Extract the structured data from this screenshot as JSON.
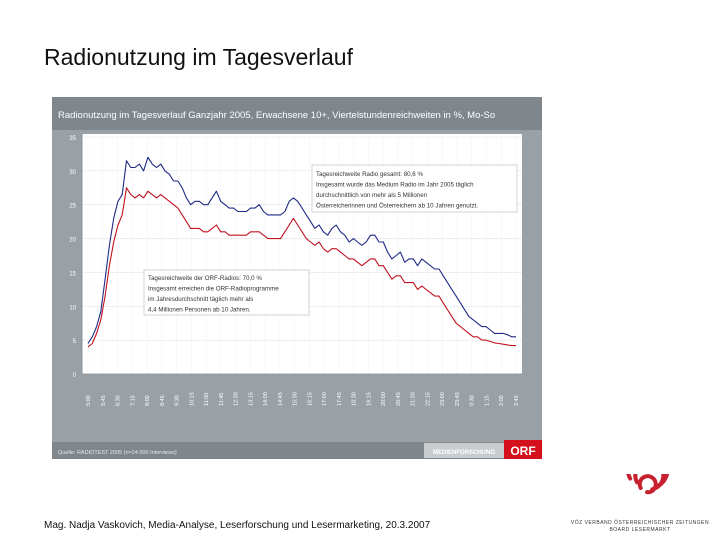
{
  "slide_title": "Radionutzung im Tagesverlauf",
  "footer": "Mag. Nadja Vaskovich, Media-Analyse, Leserforschung und Lesermarketing, 20.3.2007",
  "logo": {
    "line1": "VÖZ VERBAND ÖSTERREICHISCHER ZEITUNGEN",
    "line2": "BOARD LESERMARKT",
    "color": "#c8202f"
  },
  "chart_data": {
    "type": "line",
    "title": "Radionutzung im Tagesverlauf Ganzjahr 2005, Erwachsene 10+, Viertelstundenreichweiten in %, Mo-So",
    "source": "Quelle: RADIOTEST 2005 (n=24.000 Interviews)",
    "brand_label": "MEDIENFORSCHUNG",
    "brand_logo": "ORF",
    "ylim": [
      0,
      35
    ],
    "yticks": [
      "0",
      "5",
      "10",
      "15",
      "20",
      "25",
      "30",
      "35"
    ],
    "xticks": [
      "5:00",
      "5:45",
      "6:30",
      "7:15",
      "8:00",
      "8:45",
      "9:30",
      "10:15",
      "11:00",
      "11:45",
      "12:30",
      "13:15",
      "14:00",
      "14:45",
      "15:30",
      "16:15",
      "17:00",
      "17:45",
      "18:30",
      "19:15",
      "20:00",
      "20:45",
      "21:30",
      "22:15",
      "23:00",
      "23:45",
      "0:30",
      "1:15",
      "2:00",
      "2:45"
    ],
    "series": [
      {
        "name": "Radio gesamt",
        "color": "#1f2a86",
        "values": [
          4.5,
          5.5,
          7,
          9.2,
          14,
          19,
          23,
          25.5,
          26.5,
          31.5,
          30.5,
          30.5,
          31,
          30,
          32,
          31,
          30.5,
          31,
          30,
          29.5,
          28.5,
          28.5,
          27.5,
          26,
          25,
          25.5,
          25.5,
          25,
          25,
          26,
          27,
          25.5,
          25,
          24.5,
          24.5,
          24,
          24,
          24,
          24.5,
          24.5,
          25,
          24,
          23.5,
          23.5,
          23.5,
          23.5,
          24,
          25.5,
          26,
          25.5,
          24.5,
          23.5,
          22.5,
          21.5,
          22,
          21,
          20.5,
          21.5,
          22,
          21,
          20.5,
          19.5,
          20,
          19.5,
          19,
          19.5,
          20.5,
          20.5,
          19.5,
          19.5,
          18,
          17,
          17.5,
          18,
          16.5,
          17,
          17,
          16,
          17,
          16.5,
          16,
          15.5,
          15.5,
          14.5,
          13.5,
          12.5,
          11.5,
          10.5,
          9.5,
          8.5,
          8,
          7.5,
          7,
          7,
          6.5,
          6,
          6,
          6,
          5.8,
          5.5,
          5.5
        ]
      },
      {
        "name": "ORF-Radios",
        "color": "#c1121f",
        "values": [
          4,
          4.5,
          6,
          8,
          11.5,
          16,
          19.5,
          22,
          23.5,
          27.5,
          26.5,
          26,
          26.5,
          26,
          27,
          26.5,
          26,
          26.5,
          26,
          25.5,
          25,
          24.5,
          23.5,
          22.5,
          21.5,
          21.5,
          21.5,
          21,
          21,
          21.5,
          22,
          21,
          21,
          20.5,
          20.5,
          20.5,
          20.5,
          20.5,
          21,
          21,
          21,
          20.5,
          20,
          20,
          20,
          20,
          21,
          22,
          23,
          22,
          21,
          20,
          19.5,
          19,
          19.5,
          18.5,
          18,
          18.5,
          18.5,
          18,
          17.5,
          17,
          17,
          16.5,
          16,
          16.5,
          17,
          17,
          16,
          16,
          15,
          14,
          14.5,
          14.5,
          13.5,
          13.5,
          13.5,
          12.5,
          13,
          12.5,
          12,
          11.5,
          11.5,
          10.5,
          9.5,
          8.5,
          7.5,
          7,
          6.5,
          6,
          5.5,
          5.5,
          5,
          5,
          4.8,
          4.6,
          4.5,
          4.4,
          4.3,
          4.2,
          4.2
        ]
      }
    ],
    "annotations": [
      {
        "id": "total",
        "lines": [
          "Tagesreichweite Radio gesamt: 80,6 %",
          "Insgesamt wurde das Medium Radio im Jahr 2005 täglich",
          "durchschnittlich von mehr als 5 Millionen",
          "Österreicherinnen und Österreichern ab 10 Jahren genutzt."
        ]
      },
      {
        "id": "orf",
        "lines": [
          "Tagesreichweite der ORF-Radios: 70,0 %",
          "Insgesamt erreichen die ORF-Radioprogramme",
          "im Jahresdurchschnitt täglich mehr als",
          "4,4 Millionen Personen ab 10 Jahren."
        ]
      }
    ]
  }
}
